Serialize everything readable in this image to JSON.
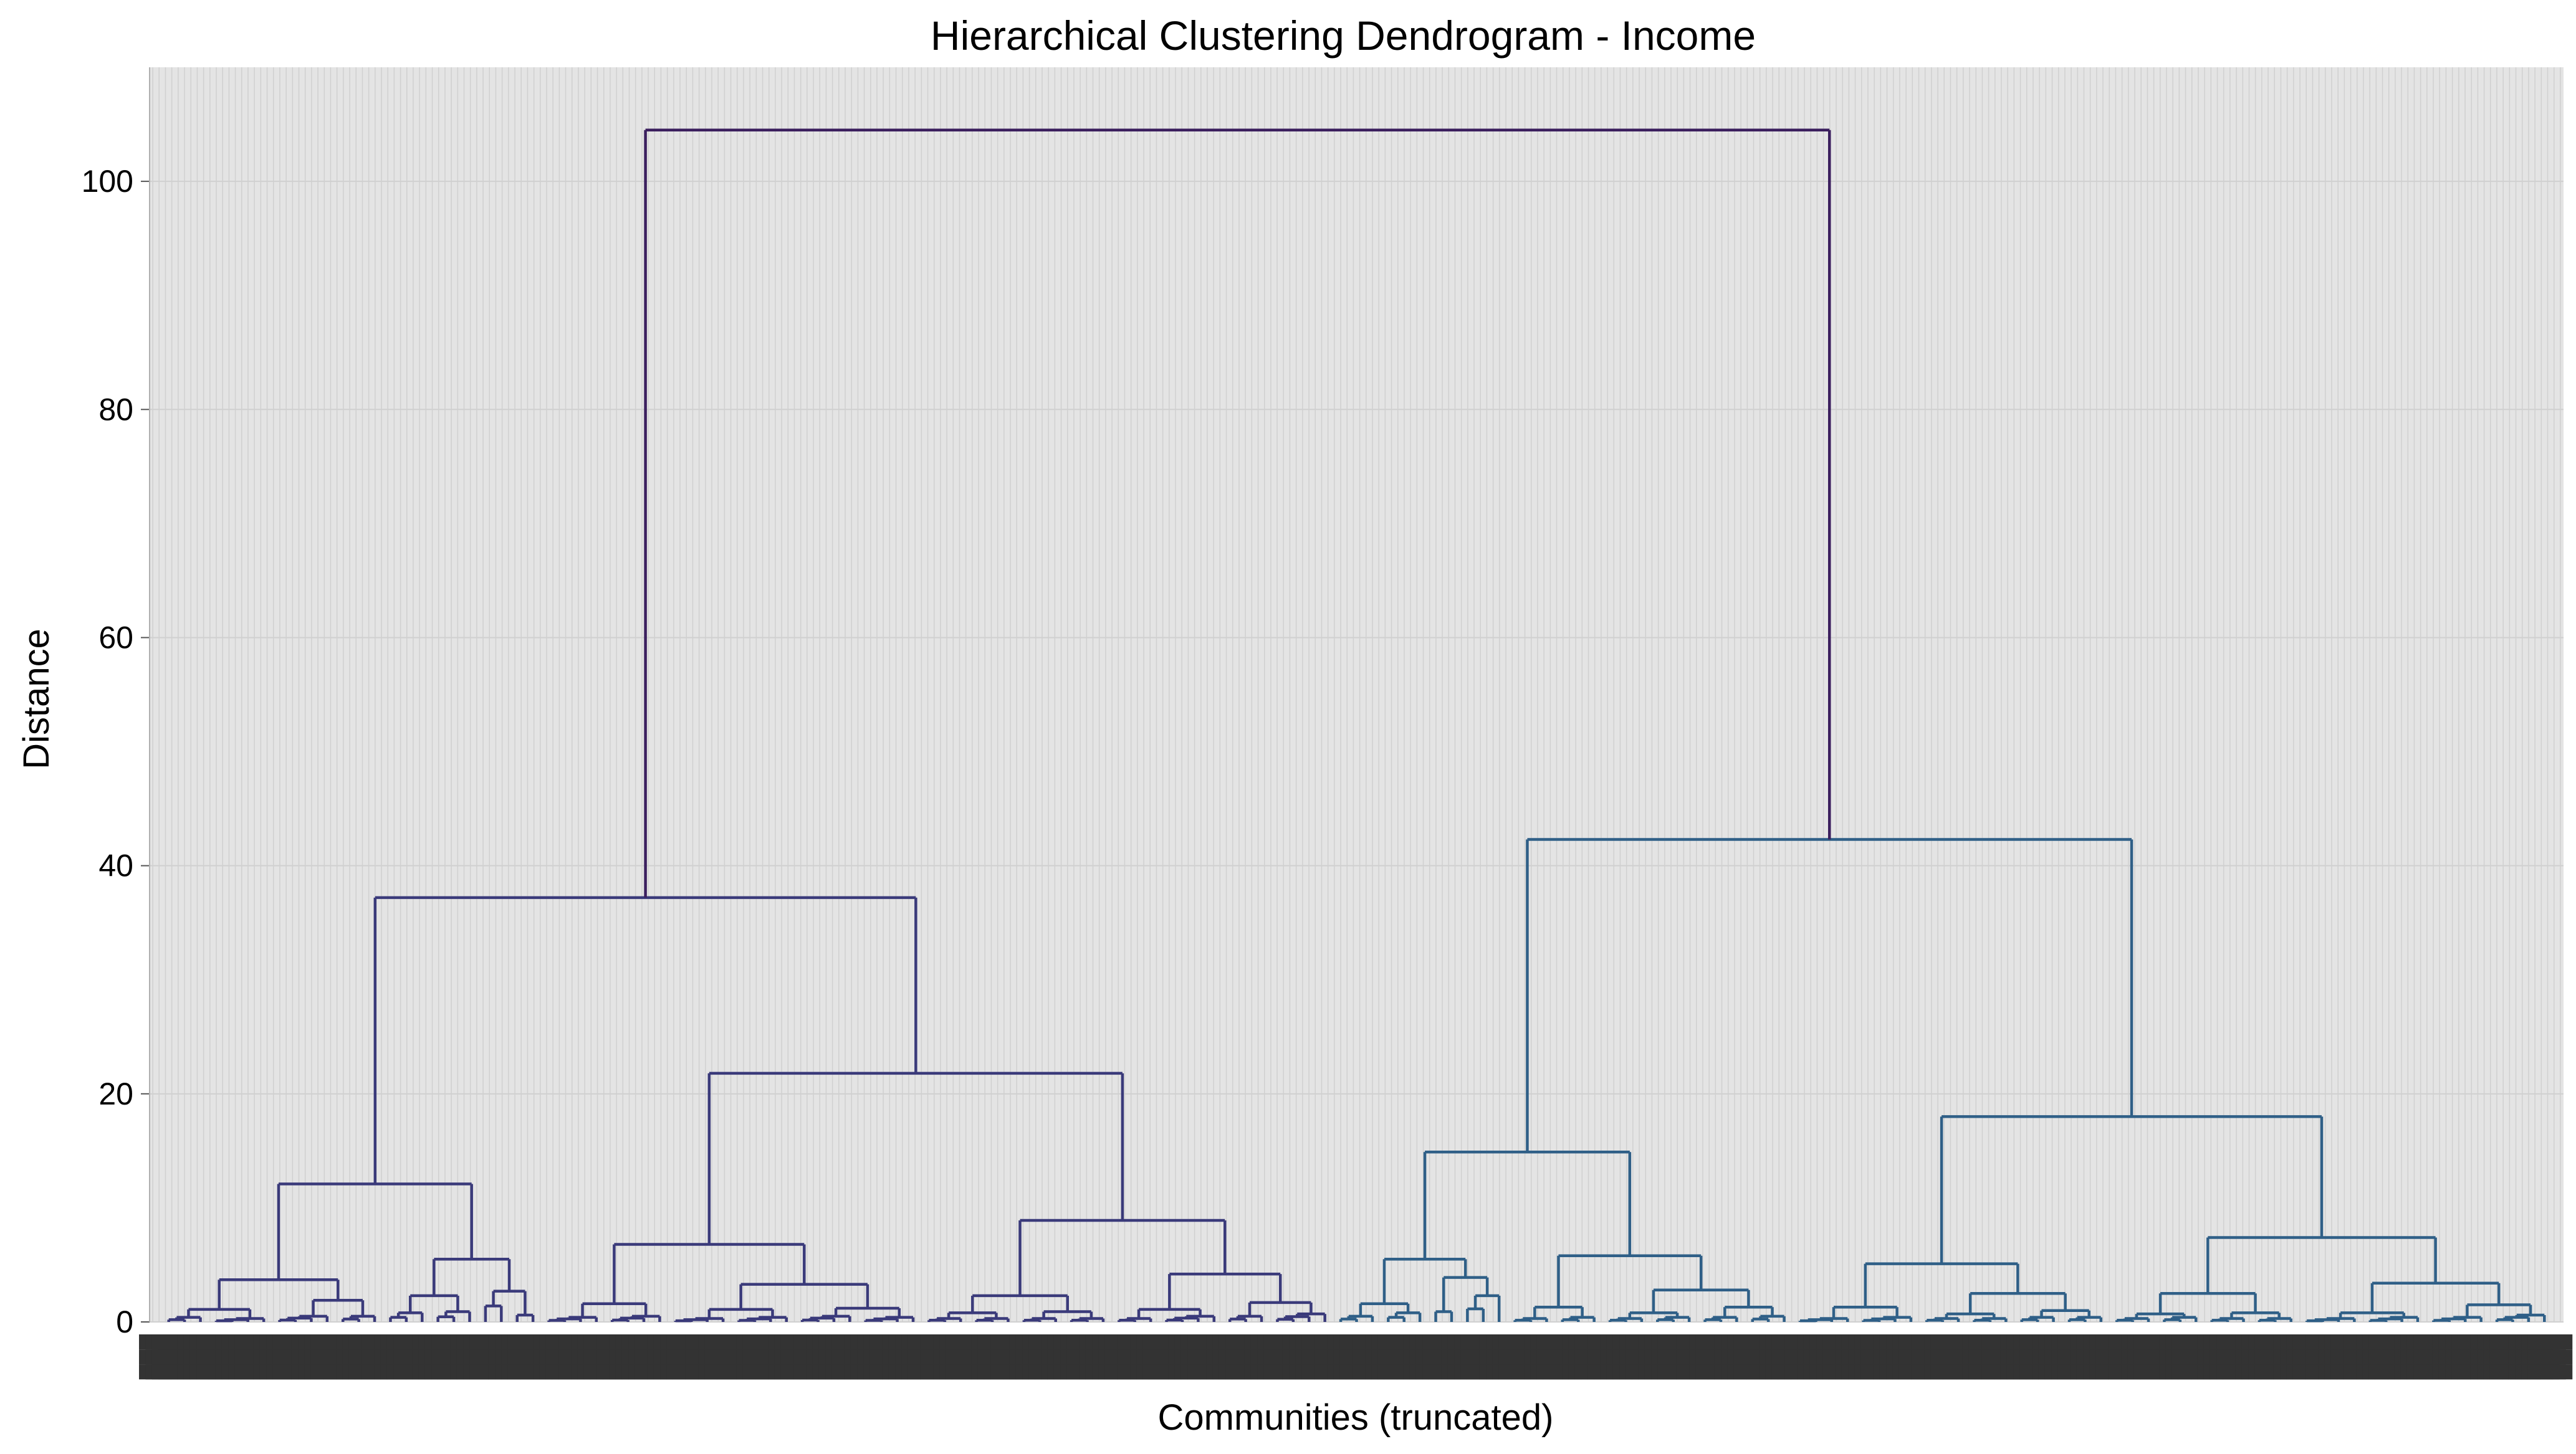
{
  "chart_data": {
    "type": "dendrogram",
    "title": "Hierarchical Clustering Dendrogram - Income",
    "xlabel": "Communities (truncated)",
    "ylabel": "Distance",
    "ylim": [
      0,
      110
    ],
    "yticks": [
      0,
      20,
      40,
      60,
      80,
      100
    ],
    "grid": true,
    "legend": "none",
    "x_tick_label_count": 380,
    "x_tick_labels_note": "dense overlapping leaf labels, illegible",
    "colors": {
      "root": "#3b1f5e",
      "left_cluster": "#3a3a7a",
      "right_cluster": "#2f5f87",
      "background": "#e4e4e4",
      "grid": "#d0d0d0"
    },
    "tree": {
      "h": 104.5,
      "c": "root",
      "children": [
        {
          "h": 37.2,
          "c": "left_cluster",
          "children": [
            {
              "h": 12.1,
              "children": [
                {
                  "h": 3.7,
                  "children": [
                    {
                      "h": 1.1,
                      "children": [
                        {
                          "leaves": 3,
                          "h": 0.4
                        },
                        {
                          "leaves": 4,
                          "h": 0.3
                        }
                      ]
                    },
                    {
                      "h": 1.9,
                      "children": [
                        {
                          "leaves": 4,
                          "h": 0.5
                        },
                        {
                          "leaves": 3,
                          "h": 0.5
                        }
                      ]
                    }
                  ]
                },
                {
                  "h": 5.5,
                  "children": [
                    {
                      "h": 2.3,
                      "children": [
                        {
                          "leaves": 3,
                          "h": 0.8
                        },
                        {
                          "leaves": 3,
                          "h": 0.9
                        }
                      ]
                    },
                    {
                      "h": 2.7,
                      "children": [
                        {
                          "leaves": 2,
                          "h": 1.4
                        },
                        {
                          "leaves": 2,
                          "h": 0.6
                        }
                      ]
                    }
                  ]
                }
              ]
            },
            {
              "h": 21.8,
              "children": [
                {
                  "h": 6.8,
                  "children": [
                    {
                      "h": 1.6,
                      "children": [
                        {
                          "leaves": 4,
                          "h": 0.4
                        },
                        {
                          "leaves": 4,
                          "h": 0.5
                        }
                      ]
                    },
                    {
                      "h": 3.3,
                      "children": [
                        {
                          "h": 1.1,
                          "children": [
                            {
                              "leaves": 4,
                              "h": 0.3
                            },
                            {
                              "leaves": 4,
                              "h": 0.4
                            }
                          ]
                        },
                        {
                          "h": 1.2,
                          "children": [
                            {
                              "leaves": 4,
                              "h": 0.5
                            },
                            {
                              "leaves": 4,
                              "h": 0.4
                            }
                          ]
                        }
                      ]
                    }
                  ]
                },
                {
                  "h": 8.9,
                  "children": [
                    {
                      "h": 2.3,
                      "children": [
                        {
                          "h": 0.8,
                          "children": [
                            {
                              "leaves": 3,
                              "h": 0.3
                            },
                            {
                              "leaves": 3,
                              "h": 0.3
                            }
                          ]
                        },
                        {
                          "h": 0.9,
                          "children": [
                            {
                              "leaves": 3,
                              "h": 0.3
                            },
                            {
                              "leaves": 3,
                              "h": 0.3
                            }
                          ]
                        }
                      ]
                    },
                    {
                      "h": 4.2,
                      "children": [
                        {
                          "h": 1.1,
                          "children": [
                            {
                              "leaves": 3,
                              "h": 0.3
                            },
                            {
                              "leaves": 4,
                              "h": 0.5
                            }
                          ]
                        },
                        {
                          "h": 1.7,
                          "children": [
                            {
                              "leaves": 3,
                              "h": 0.5
                            },
                            {
                              "leaves": 4,
                              "h": 0.7
                            }
                          ]
                        }
                      ]
                    }
                  ]
                }
              ]
            }
          ]
        },
        {
          "h": 42.3,
          "c": "right_cluster",
          "children": [
            {
              "h": 14.9,
              "children": [
                {
                  "h": 5.5,
                  "children": [
                    {
                      "h": 1.6,
                      "children": [
                        {
                          "leaves": 3,
                          "h": 0.5
                        },
                        {
                          "leaves": 3,
                          "h": 0.8
                        }
                      ]
                    },
                    {
                      "h": 3.9,
                      "children": [
                        {
                          "leaves": 2,
                          "h": 0.9
                        },
                        {
                          "leaves": 3,
                          "h": 2.3
                        }
                      ]
                    }
                  ]
                },
                {
                  "h": 5.8,
                  "children": [
                    {
                      "h": 1.3,
                      "children": [
                        {
                          "leaves": 3,
                          "h": 0.3
                        },
                        {
                          "leaves": 3,
                          "h": 0.4
                        }
                      ]
                    },
                    {
                      "h": 2.8,
                      "children": [
                        {
                          "h": 0.8,
                          "children": [
                            {
                              "leaves": 3,
                              "h": 0.3
                            },
                            {
                              "leaves": 3,
                              "h": 0.4
                            }
                          ]
                        },
                        {
                          "h": 1.3,
                          "children": [
                            {
                              "leaves": 3,
                              "h": 0.4
                            },
                            {
                              "leaves": 3,
                              "h": 0.5
                            }
                          ]
                        }
                      ]
                    }
                  ]
                }
              ]
            },
            {
              "h": 18.0,
              "children": [
                {
                  "h": 5.1,
                  "children": [
                    {
                      "h": 1.3,
                      "children": [
                        {
                          "leaves": 4,
                          "h": 0.3
                        },
                        {
                          "leaves": 4,
                          "h": 0.4
                        }
                      ]
                    },
                    {
                      "h": 2.5,
                      "children": [
                        {
                          "h": 0.7,
                          "children": [
                            {
                              "leaves": 3,
                              "h": 0.3
                            },
                            {
                              "leaves": 3,
                              "h": 0.3
                            }
                          ]
                        },
                        {
                          "h": 1.0,
                          "children": [
                            {
                              "leaves": 3,
                              "h": 0.4
                            },
                            {
                              "leaves": 3,
                              "h": 0.4
                            }
                          ]
                        }
                      ]
                    }
                  ]
                },
                {
                  "h": 7.4,
                  "children": [
                    {
                      "h": 2.5,
                      "children": [
                        {
                          "h": 0.7,
                          "children": [
                            {
                              "leaves": 3,
                              "h": 0.3
                            },
                            {
                              "leaves": 3,
                              "h": 0.4
                            }
                          ]
                        },
                        {
                          "h": 0.8,
                          "children": [
                            {
                              "leaves": 3,
                              "h": 0.3
                            },
                            {
                              "leaves": 3,
                              "h": 0.3
                            }
                          ]
                        }
                      ]
                    },
                    {
                      "h": 3.4,
                      "children": [
                        {
                          "h": 0.8,
                          "children": [
                            {
                              "leaves": 4,
                              "h": 0.3
                            },
                            {
                              "leaves": 4,
                              "h": 0.4
                            }
                          ]
                        },
                        {
                          "h": 1.5,
                          "children": [
                            {
                              "leaves": 4,
                              "h": 0.4
                            },
                            {
                              "leaves": 4,
                              "h": 0.6
                            }
                          ]
                        }
                      ]
                    }
                  ]
                }
              ]
            }
          ]
        }
      ]
    }
  }
}
